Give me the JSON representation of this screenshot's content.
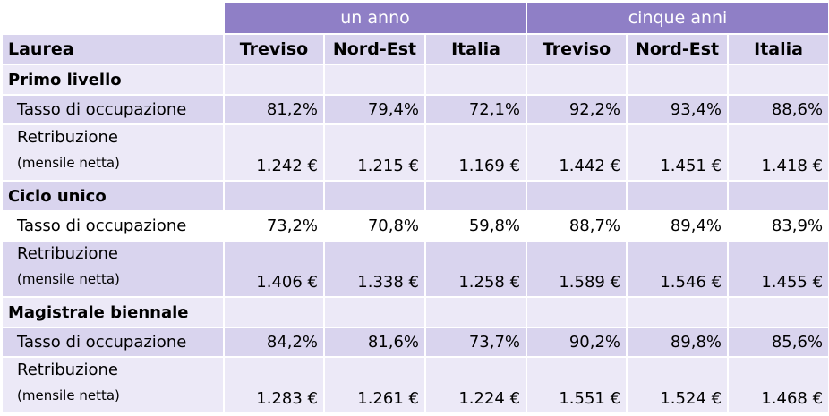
{
  "header": {
    "group_1": "un anno",
    "group_2": "cinque anni"
  },
  "columns": {
    "first": "Laurea",
    "names": [
      "Treviso",
      "Nord-Est",
      "Italia",
      "Treviso",
      "Nord-Est",
      "Italia"
    ]
  },
  "sections": [
    {
      "title": "Primo livello",
      "tasso_label": "Tasso di occupazione",
      "tasso": [
        "81,2%",
        "79,4%",
        "72,1%",
        "92,2%",
        "93,4%",
        "88,6%"
      ],
      "retr_label": "Retribuzione",
      "retr_sub": "(mensile netta)",
      "retr": [
        "1.242 €",
        "1.215 €",
        "1.169 €",
        "1.442 €",
        "1.451 €",
        "1.418 €"
      ]
    },
    {
      "title": "Ciclo unico",
      "tasso_label": "Tasso di occupazione",
      "tasso": [
        "73,2%",
        "70,8%",
        "59,8%",
        "88,7%",
        "89,4%",
        "83,9%"
      ],
      "retr_label": "Retribuzione",
      "retr_sub": "(mensile netta)",
      "retr": [
        "1.406 €",
        "1.338 €",
        "1.258 €",
        "1.589 €",
        "1.546 €",
        "1.455 €"
      ]
    },
    {
      "title": "Magistrale biennale",
      "tasso_label": "Tasso di occupazione",
      "tasso": [
        "84,2%",
        "81,6%",
        "73,7%",
        "90,2%",
        "89,8%",
        "85,6%"
      ],
      "retr_label": "Retribuzione",
      "retr_sub": "(mensile netta)",
      "retr": [
        "1.283 €",
        "1.261 €",
        "1.224 €",
        "1.551 €",
        "1.524 €",
        "1.468 €"
      ]
    }
  ]
}
